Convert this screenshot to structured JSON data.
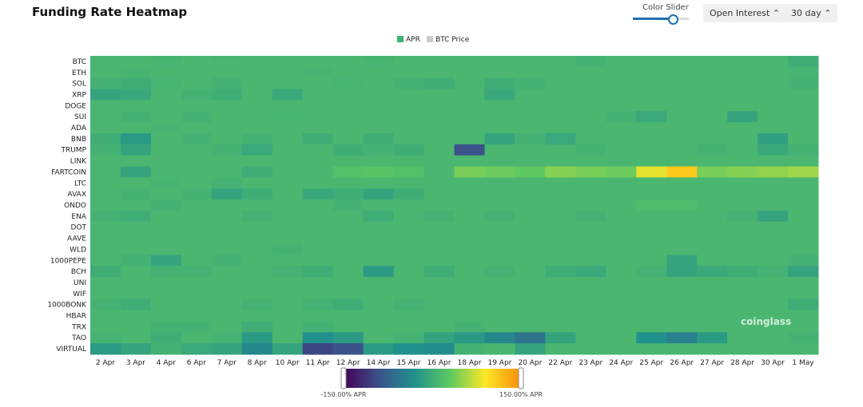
{
  "controls": {
    "color_slider": "Color Slider",
    "metric": "Open Interest",
    "range": "30 day"
  },
  "chart_data": {
    "type": "heatmap",
    "title": "Funding Rate Heatmap",
    "legend": [
      {
        "name": "APR",
        "color": "#3cb371"
      },
      {
        "name": "BTC Price",
        "color": "#cccccc"
      }
    ],
    "watermark": "coinglass",
    "x": [
      "2 Apr",
      "3 Apr",
      "4 Apr",
      "6 Apr",
      "7 Apr",
      "8 Apr",
      "10 Apr",
      "11 Apr",
      "12 Apr",
      "14 Apr",
      "15 Apr",
      "16 Apr",
      "18 Apr",
      "19 Apr",
      "20 Apr",
      "22 Apr",
      "23 Apr",
      "24 Apr",
      "25 Apr",
      "26 Apr",
      "27 Apr",
      "28 Apr",
      "30 Apr",
      "1 May"
    ],
    "categories": [
      "BTC",
      "ETH",
      "SOL",
      "XRP",
      "DOGE",
      "SUI",
      "ADA",
      "BNB",
      "TRUMP",
      "LINK",
      "FARTCOIN",
      "LTC",
      "AVAX",
      "ONDO",
      "ENA",
      "DOT",
      "AAVE",
      "WLD",
      "1000PEPE",
      "BCH",
      "UNI",
      "WIF",
      "1000BONK",
      "HBAR",
      "TRX",
      "TAO",
      "VIRTUAL"
    ],
    "values": [
      [
        10,
        10,
        8,
        10,
        9,
        10,
        10,
        10,
        10,
        8,
        10,
        10,
        10,
        10,
        10,
        10,
        5,
        10,
        10,
        10,
        10,
        10,
        10,
        0
      ],
      [
        10,
        8,
        10,
        10,
        10,
        10,
        10,
        8,
        10,
        10,
        10,
        10,
        10,
        10,
        10,
        10,
        10,
        10,
        10,
        10,
        10,
        10,
        10,
        8
      ],
      [
        5,
        0,
        8,
        10,
        5,
        10,
        10,
        10,
        8,
        10,
        5,
        0,
        10,
        0,
        5,
        10,
        10,
        10,
        10,
        10,
        10,
        10,
        10,
        5
      ],
      [
        -10,
        -5,
        10,
        5,
        0,
        10,
        -5,
        10,
        10,
        10,
        10,
        10,
        10,
        -5,
        10,
        10,
        10,
        10,
        10,
        10,
        10,
        10,
        10,
        10
      ],
      [
        10,
        10,
        10,
        10,
        10,
        10,
        10,
        10,
        10,
        10,
        10,
        10,
        10,
        10,
        10,
        10,
        10,
        10,
        10,
        10,
        10,
        10,
        10,
        10
      ],
      [
        10,
        5,
        10,
        5,
        10,
        10,
        8,
        10,
        10,
        10,
        10,
        10,
        10,
        10,
        10,
        10,
        10,
        5,
        -5,
        10,
        10,
        -10,
        10,
        10
      ],
      [
        10,
        10,
        8,
        10,
        10,
        10,
        10,
        10,
        10,
        10,
        10,
        10,
        10,
        10,
        10,
        10,
        10,
        10,
        10,
        10,
        10,
        10,
        10,
        10
      ],
      [
        0,
        -20,
        10,
        5,
        10,
        5,
        10,
        0,
        10,
        0,
        10,
        10,
        10,
        -10,
        5,
        -5,
        10,
        10,
        10,
        10,
        10,
        10,
        -15,
        10
      ],
      [
        5,
        -10,
        10,
        10,
        5,
        -5,
        10,
        10,
        0,
        5,
        0,
        10,
        -90,
        10,
        10,
        10,
        5,
        10,
        10,
        10,
        5,
        10,
        -5,
        5
      ],
      [
        10,
        10,
        10,
        10,
        10,
        10,
        10,
        10,
        10,
        10,
        10,
        10,
        10,
        10,
        10,
        10,
        10,
        10,
        10,
        10,
        10,
        10,
        10,
        10
      ],
      [
        10,
        -10,
        10,
        10,
        10,
        0,
        10,
        10,
        20,
        25,
        20,
        10,
        40,
        35,
        30,
        45,
        40,
        35,
        80,
        110,
        40,
        45,
        50,
        55
      ],
      [
        10,
        10,
        8,
        10,
        5,
        10,
        10,
        10,
        10,
        10,
        10,
        10,
        10,
        10,
        10,
        10,
        10,
        10,
        10,
        10,
        10,
        10,
        10,
        10
      ],
      [
        10,
        5,
        10,
        5,
        -10,
        0,
        10,
        -5,
        0,
        -10,
        0,
        10,
        10,
        10,
        10,
        10,
        10,
        10,
        10,
        10,
        10,
        10,
        10,
        10
      ],
      [
        10,
        10,
        5,
        10,
        10,
        10,
        10,
        10,
        5,
        10,
        10,
        10,
        10,
        10,
        10,
        10,
        10,
        10,
        15,
        15,
        10,
        10,
        10,
        10
      ],
      [
        5,
        0,
        10,
        10,
        10,
        5,
        10,
        10,
        10,
        0,
        10,
        5,
        10,
        5,
        10,
        10,
        5,
        10,
        10,
        10,
        10,
        5,
        -10,
        10
      ],
      [
        10,
        10,
        10,
        10,
        10,
        10,
        10,
        10,
        10,
        10,
        10,
        10,
        10,
        10,
        10,
        10,
        10,
        10,
        10,
        10,
        10,
        10,
        10,
        10
      ],
      [
        10,
        10,
        10,
        10,
        10,
        10,
        10,
        10,
        10,
        10,
        10,
        10,
        10,
        10,
        10,
        10,
        10,
        10,
        10,
        10,
        10,
        10,
        10,
        10
      ],
      [
        10,
        10,
        10,
        10,
        10,
        10,
        5,
        10,
        10,
        10,
        10,
        10,
        10,
        10,
        10,
        10,
        10,
        10,
        10,
        10,
        10,
        10,
        10,
        10
      ],
      [
        10,
        5,
        -10,
        10,
        5,
        10,
        10,
        10,
        10,
        10,
        10,
        10,
        10,
        10,
        10,
        10,
        10,
        10,
        10,
        -10,
        10,
        10,
        10,
        5
      ],
      [
        0,
        10,
        5,
        5,
        10,
        10,
        5,
        0,
        10,
        -20,
        10,
        0,
        10,
        5,
        10,
        0,
        -5,
        10,
        5,
        -10,
        -5,
        0,
        5,
        -10
      ],
      [
        10,
        10,
        10,
        10,
        10,
        10,
        10,
        10,
        10,
        10,
        10,
        10,
        10,
        10,
        10,
        10,
        10,
        10,
        10,
        10,
        10,
        10,
        10,
        10
      ],
      [
        10,
        10,
        10,
        10,
        10,
        10,
        10,
        10,
        10,
        10,
        10,
        10,
        10,
        10,
        10,
        10,
        10,
        10,
        10,
        10,
        10,
        10,
        10,
        10
      ],
      [
        5,
        0,
        10,
        10,
        10,
        5,
        10,
        5,
        0,
        10,
        5,
        10,
        10,
        10,
        10,
        10,
        10,
        10,
        10,
        10,
        10,
        10,
        10,
        0
      ],
      [
        10,
        10,
        10,
        10,
        10,
        10,
        10,
        10,
        10,
        10,
        10,
        10,
        10,
        10,
        10,
        10,
        10,
        10,
        10,
        10,
        10,
        10,
        10,
        10
      ],
      [
        10,
        10,
        5,
        5,
        10,
        0,
        10,
        5,
        10,
        10,
        10,
        10,
        5,
        10,
        10,
        10,
        10,
        10,
        10,
        10,
        10,
        10,
        10,
        10
      ],
      [
        5,
        10,
        0,
        10,
        5,
        -20,
        10,
        -30,
        -20,
        10,
        5,
        -10,
        -20,
        -40,
        -60,
        -10,
        10,
        10,
        -30,
        -45,
        -20,
        10,
        10,
        5
      ],
      [
        -20,
        -10,
        5,
        -5,
        -10,
        -40,
        -10,
        -100,
        -90,
        -20,
        -30,
        -35,
        5,
        10,
        -10,
        10,
        10,
        10,
        10,
        10,
        10,
        10,
        10,
        10
      ]
    ],
    "zlim": [
      -150,
      150
    ],
    "colorscale": [
      "#440154",
      "#3b528b",
      "#21918c",
      "#5ec962",
      "#fde725",
      "#f98c0a"
    ],
    "colorbar_ticks": [
      {
        "value": -150,
        "label": "-150.00% APR"
      },
      {
        "value": 150,
        "label": "150.00% APR"
      }
    ]
  }
}
